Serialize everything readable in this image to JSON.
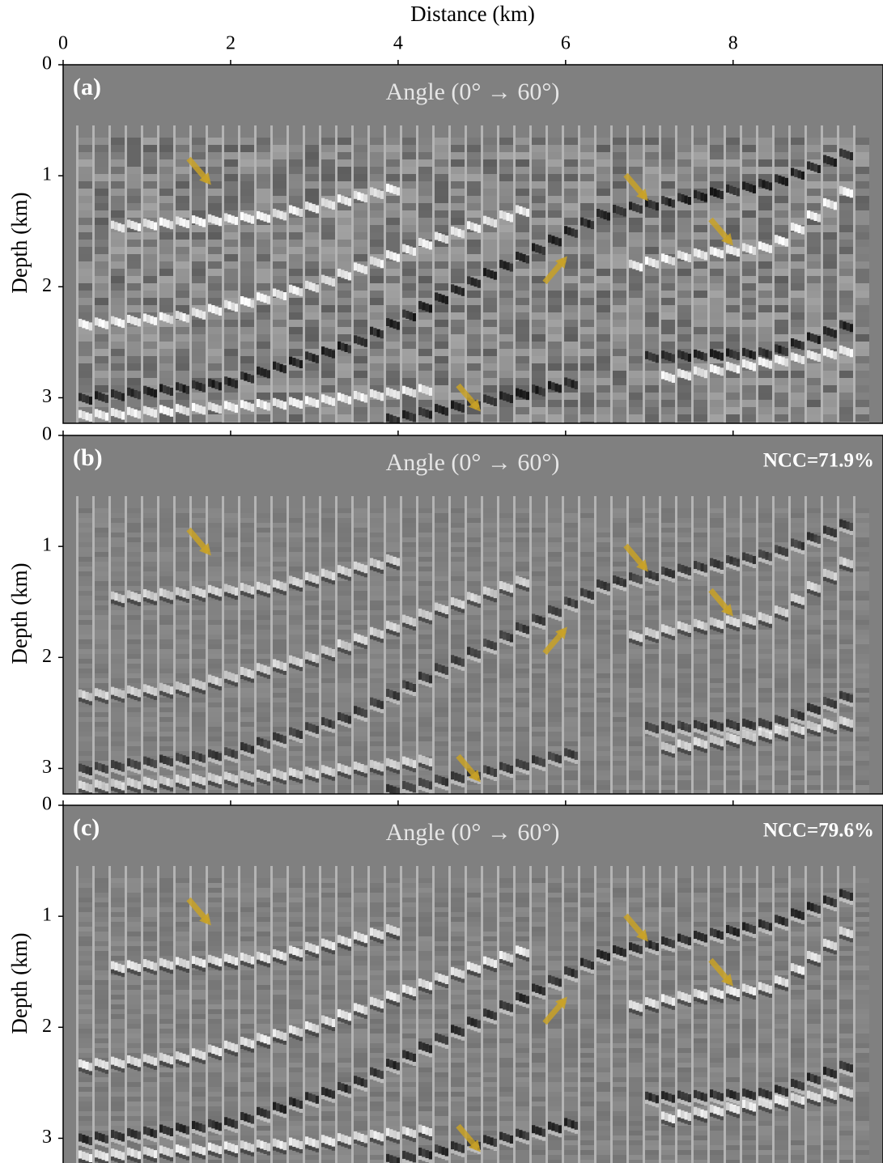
{
  "chart_data": [
    {
      "type": "image",
      "label": "(a)",
      "title": "Angle (0° → 60°)",
      "xlabel": "Distance (km)",
      "ylabel": "Depth (km)",
      "xlim": [
        0,
        9.79
      ],
      "xticks": [
        0,
        2,
        4,
        6,
        8
      ],
      "ylim": [
        3.23,
        0
      ],
      "yticks": [
        0,
        1,
        2,
        3
      ]
    },
    {
      "type": "image",
      "label": "(b)",
      "title": "Angle (0° → 60°)",
      "annotation": "NCC=71.9%",
      "ylabel": "Depth (km)",
      "xlim": [
        0,
        9.79
      ],
      "xticks": [
        0,
        2,
        4,
        6,
        8
      ],
      "ylim": [
        3.23,
        0
      ],
      "yticks": [
        0,
        1,
        2,
        3
      ]
    },
    {
      "type": "image",
      "label": "(c)",
      "title": "Angle (0° → 60°)",
      "annotation": "NCC=79.6%",
      "ylabel": "Depth (km)",
      "xlim": [
        0,
        9.79
      ],
      "xticks": [
        0,
        2,
        4,
        6,
        8
      ],
      "ylim": [
        3.23,
        0
      ],
      "yticks": [
        0,
        1,
        2,
        3
      ]
    }
  ]
}
